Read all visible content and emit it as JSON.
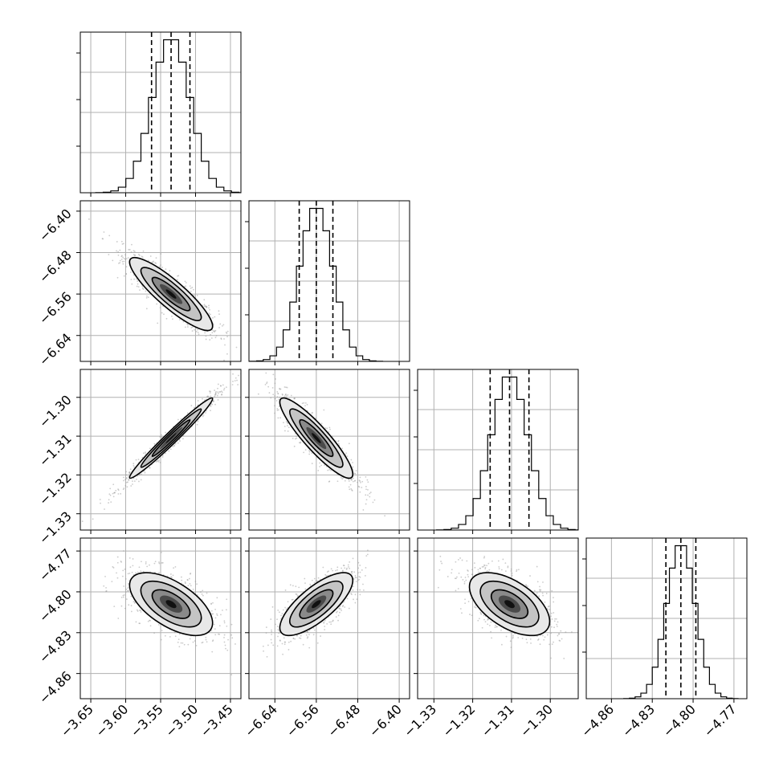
{
  "chart_data": {
    "type": "corner",
    "grid": true,
    "parameters": [
      {
        "ticks": [
          -3.65,
          -3.6,
          -3.55,
          -3.5,
          -3.45
        ],
        "tick_labels": [
          "−3.65",
          "−3.60",
          "−3.55",
          "−3.50",
          "−3.45"
        ],
        "range": [
          -3.665,
          -3.435
        ]
      },
      {
        "ticks": [
          -6.64,
          -6.56,
          -6.48,
          -6.4
        ],
        "tick_labels": [
          "−6.64",
          "−6.56",
          "−6.48",
          "−6.40"
        ],
        "range": [
          -6.69,
          -6.38
        ]
      },
      {
        "ticks": [
          -1.33,
          -1.32,
          -1.31,
          -1.3
        ],
        "tick_labels": [
          "−1.33",
          "−1.32",
          "−1.31",
          "−1.30"
        ],
        "range": [
          -1.3342,
          -1.2928
        ]
      },
      {
        "ticks": [
          -4.86,
          -4.83,
          -4.8,
          -4.77
        ],
        "tick_labels": [
          "−4.86",
          "−4.83",
          "−4.80",
          "−4.77"
        ],
        "range": [
          -4.8785,
          -4.7605
        ]
      }
    ],
    "marginals": [
      {
        "mean": -3.535,
        "sd": 0.027,
        "quantiles": [
          -3.563,
          -3.535,
          -3.508
        ]
      },
      {
        "mean": -6.56,
        "sd": 0.032,
        "quantiles": [
          -6.593,
          -6.56,
          -6.528
        ]
      },
      {
        "mean": -1.3105,
        "sd": 0.0047,
        "quantiles": [
          -1.3155,
          -1.3105,
          -1.3055
        ]
      },
      {
        "mean": -4.809,
        "sd": 0.0105,
        "quantiles": [
          -4.82,
          -4.809,
          -4.798
        ]
      }
    ],
    "correlations": {
      "1-0": -0.88,
      "2-0": 0.98,
      "2-1": -0.9,
      "3-0": -0.6,
      "3-1": 0.75,
      "3-2": -0.55
    },
    "colors": {
      "line": "#000000",
      "grid": "#b0b0b0",
      "points": "#9a9a9a"
    }
  }
}
